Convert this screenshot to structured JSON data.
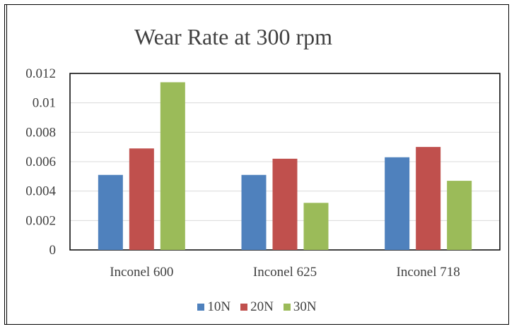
{
  "chart_data": {
    "type": "bar",
    "title": "Wear Rate at 300 rpm",
    "categories": [
      "Inconel 600",
      "Inconel 625",
      "Inconel 718"
    ],
    "series": [
      {
        "name": "10N",
        "color": "#4f81bd",
        "values": [
          0.0051,
          0.0051,
          0.0063
        ]
      },
      {
        "name": "20N",
        "color": "#c0504d",
        "values": [
          0.0069,
          0.0062,
          0.007
        ]
      },
      {
        "name": "30N",
        "color": "#9bbb59",
        "values": [
          0.0114,
          0.0032,
          0.0047
        ]
      }
    ],
    "ylim": [
      0,
      0.012
    ],
    "yticks": [
      "0",
      "0.002",
      "0.004",
      "0.006",
      "0.008",
      "0.01",
      "0.012"
    ],
    "ytick_values": [
      0,
      0.002,
      0.004,
      0.006,
      0.008,
      0.01,
      0.012
    ],
    "grid": true,
    "legend_position": "bottom"
  }
}
